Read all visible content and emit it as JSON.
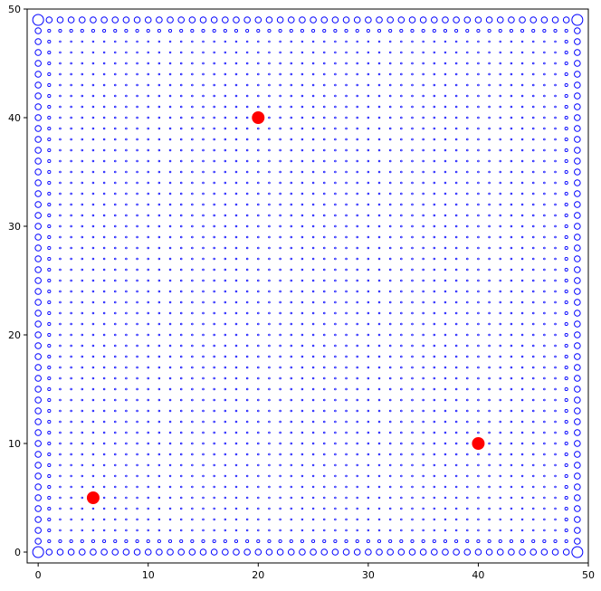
{
  "chart_data": {
    "type": "scatter",
    "title": "",
    "xlabel": "",
    "ylabel": "",
    "xlim": [
      -1,
      50
    ],
    "ylim": [
      -1,
      50
    ],
    "xticks": [
      0,
      10,
      20,
      30,
      40,
      50
    ],
    "yticks": [
      0,
      10,
      20,
      30,
      40,
      50
    ],
    "grid": false,
    "legend": "none",
    "series": [
      {
        "kind": "grid-points",
        "marker": "hollow-circle",
        "color": "#0000ff",
        "x_range": [
          0,
          49
        ],
        "y_range": [
          0,
          49
        ],
        "step": 1,
        "note_size": "corners largest, edges medium, rows/columns next to the edges small, interior dots"
      },
      {
        "kind": "highlight",
        "marker": "filled-circle",
        "color": "#ff0000",
        "points": [
          {
            "x": 20,
            "y": 40
          },
          {
            "x": 40,
            "y": 10
          },
          {
            "x": 5,
            "y": 5
          }
        ]
      }
    ]
  }
}
